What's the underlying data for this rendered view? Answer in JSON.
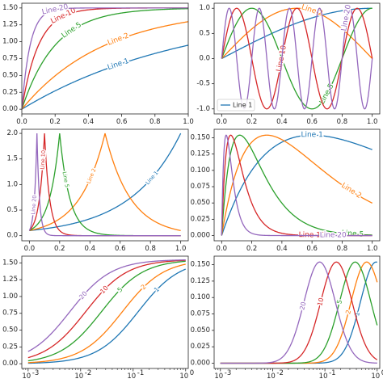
{
  "figure": {
    "layout": "3x2 grid of line-plot panels"
  },
  "palette": {
    "Line 1": "#1f77b4",
    "Line 2": "#ff7f0e",
    "Line 5": "#2ca02c",
    "Line 10": "#d62728",
    "Line 20": "#9467bd"
  },
  "chart_data": [
    {
      "type": "line",
      "panel": "row1-left",
      "function": "saturating growth, y = 1.5*(1 - exp(-k*x))",
      "params": [
        1,
        2,
        5,
        10,
        20
      ],
      "series": [
        {
          "name": "Line 1",
          "param": 1,
          "label": "Line 1",
          "label_x": 0.58
        },
        {
          "name": "Line 2",
          "param": 2,
          "label": "Line 2",
          "label_x": 0.58
        },
        {
          "name": "Line 5",
          "param": 5,
          "label": "Line 5",
          "label_x": 0.3
        },
        {
          "name": "Line 10",
          "param": 10,
          "label": "Line 10",
          "label_x": 0.25
        },
        {
          "name": "Line 20",
          "param": 20,
          "label": "Line 20",
          "label_x": 0.2
        }
      ],
      "xlim": [
        0,
        1
      ],
      "ylim": [
        -0.07,
        1.57
      ],
      "xticks": [
        "0.0",
        "0.2",
        "0.4",
        "0.6",
        "0.8",
        "1.0"
      ],
      "yticks": [
        "0.00",
        "0.25",
        "0.50",
        "0.75",
        "1.00",
        "1.25",
        "1.50"
      ],
      "legend": null
    },
    {
      "type": "line",
      "panel": "row1-right",
      "function": "sine, y = sin(k*pi*x/2)",
      "params": [
        1,
        2,
        5,
        10,
        20
      ],
      "series": [
        {
          "name": "Line 1",
          "param": 1,
          "label": null
        },
        {
          "name": "Line 2",
          "param": 2,
          "label": "Line 2",
          "label_x": 0.6
        },
        {
          "name": "Line 5",
          "param": 5,
          "label": "Line 5",
          "label_x": 0.7
        },
        {
          "name": "Line 10",
          "param": 10,
          "label": "Line 10",
          "label_x": 0.4
        },
        {
          "name": "Line 20",
          "param": 20,
          "label": "Line 20",
          "label_x": 0.83
        }
      ],
      "xlim": [
        -0.05,
        1.05
      ],
      "ylim": [
        -1.1,
        1.1
      ],
      "xticks": [
        "0.0",
        "0.2",
        "0.4",
        "0.6",
        "0.8",
        "1.0"
      ],
      "yticks": [
        "-1.0",
        "-0.5",
        "0.0",
        "0.5",
        "1.0"
      ],
      "legend": {
        "position": "lower-left",
        "entries": [
          "Line 1"
        ]
      }
    },
    {
      "type": "line",
      "panel": "row2-left",
      "function": "peak at x = 1/k, height 2",
      "params": [
        1,
        2,
        5,
        10,
        20
      ],
      "series": [
        {
          "name": "Line 1",
          "param": 1,
          "label": "Line 1",
          "label_x": 0.81
        },
        {
          "name": "Line 2",
          "param": 2,
          "label": "Line 2",
          "label_x": 0.41
        },
        {
          "name": "Line 5",
          "param": 5,
          "label": "Line 5",
          "label_x": 0.24
        },
        {
          "name": "Line 10",
          "param": 10,
          "label": "Line 10",
          "label_x": 0.09
        },
        {
          "name": "Line 20",
          "param": 20,
          "label": "Line 20",
          "label_x": 0.03
        }
      ],
      "xlim": [
        -0.05,
        1.05
      ],
      "ylim": [
        -0.1,
        2.08
      ],
      "xticks": [
        "0.0",
        "0.2",
        "0.4",
        "0.6",
        "0.8",
        "1.0"
      ],
      "yticks": [
        "0.0",
        "0.5",
        "1.0",
        "1.5",
        "2.0"
      ],
      "legend": null
    },
    {
      "type": "line",
      "panel": "row2-right",
      "function": "hump, y = A*(k*x)*exp(-k*x*0.3)",
      "params": [
        1,
        2,
        5,
        10,
        20
      ],
      "series": [
        {
          "name": "Line 1",
          "param": 1,
          "label": "Line 1",
          "label_x": 0.6
        },
        {
          "name": "Line 2",
          "param": 2,
          "label": "Line 2",
          "label_x": 0.86
        },
        {
          "name": "Line 5",
          "param": 5,
          "label": "Line 5",
          "label_x": 0.87
        },
        {
          "name": "Line 10",
          "param": 10,
          "label": "Line 10",
          "label_x": 0.6
        },
        {
          "name": "Line 20",
          "param": 20,
          "label": "Line 20",
          "label_x": 0.74
        }
      ],
      "xlim": [
        -0.05,
        1.05
      ],
      "ylim": [
        -0.008,
        0.163
      ],
      "xticks": [
        "0.0",
        "0.2",
        "0.4",
        "0.6",
        "0.8",
        "1.0"
      ],
      "yticks": [
        "0.000",
        "0.025",
        "0.050",
        "0.075",
        "0.100",
        "0.125",
        "0.150"
      ],
      "legend": null
    },
    {
      "type": "line",
      "panel": "row3-left",
      "function": "sigmoid growth vs log x",
      "x_scale": "log",
      "params": [
        1,
        2,
        5,
        10,
        20
      ],
      "series": [
        {
          "name": "Line 1",
          "param": 1,
          "label": "1",
          "label_logx": -0.55
        },
        {
          "name": "Line 2",
          "param": 2,
          "label": "2",
          "label_logx": -0.8
        },
        {
          "name": "Line 5",
          "param": 5,
          "label": "5",
          "label_logx": -1.25
        },
        {
          "name": "Line 10",
          "param": 10,
          "label": "10",
          "label_logx": -1.55
        },
        {
          "name": "Line 20",
          "param": 20,
          "label": "20",
          "label_logx": -1.95
        }
      ],
      "xlim_log10": [
        -3.12,
        0.05
      ],
      "ylim": [
        -0.07,
        1.6
      ],
      "xticks": [
        "10",
        "10",
        "10",
        "10"
      ],
      "xtick_exponents": [
        "-3",
        "-2",
        "-1",
        "0"
      ],
      "yticks": [
        "0.00",
        "0.25",
        "0.50",
        "0.75",
        "1.00",
        "1.25",
        "1.50"
      ],
      "legend": null
    },
    {
      "type": "line",
      "panel": "row3-right",
      "function": "hump vs log x",
      "x_scale": "log",
      "params": [
        1,
        2,
        5,
        10,
        20
      ],
      "series": [
        {
          "name": "Line 1",
          "param": 1,
          "label": "1",
          "label_logx": -0.38
        },
        {
          "name": "Line 2",
          "param": 2,
          "label": "2",
          "label_logx": -0.55
        },
        {
          "name": "Line 5",
          "param": 5,
          "label": "5",
          "label_logx": -0.72
        },
        {
          "name": "Line 10",
          "param": 10,
          "label": "10",
          "label_logx": -1.08
        },
        {
          "name": "Line 20",
          "param": 20,
          "label": "20",
          "label_logx": -1.42
        }
      ],
      "xlim_log10": [
        -3.12,
        0.05
      ],
      "ylim": [
        -0.008,
        0.163
      ],
      "xticks": [
        "10",
        "10",
        "10",
        "10"
      ],
      "xtick_exponents": [
        "-3",
        "-2",
        "-1",
        "0"
      ],
      "yticks": [
        "0.000",
        "0.025",
        "0.050",
        "0.075",
        "0.100",
        "0.125",
        "0.150"
      ],
      "legend": null
    }
  ]
}
